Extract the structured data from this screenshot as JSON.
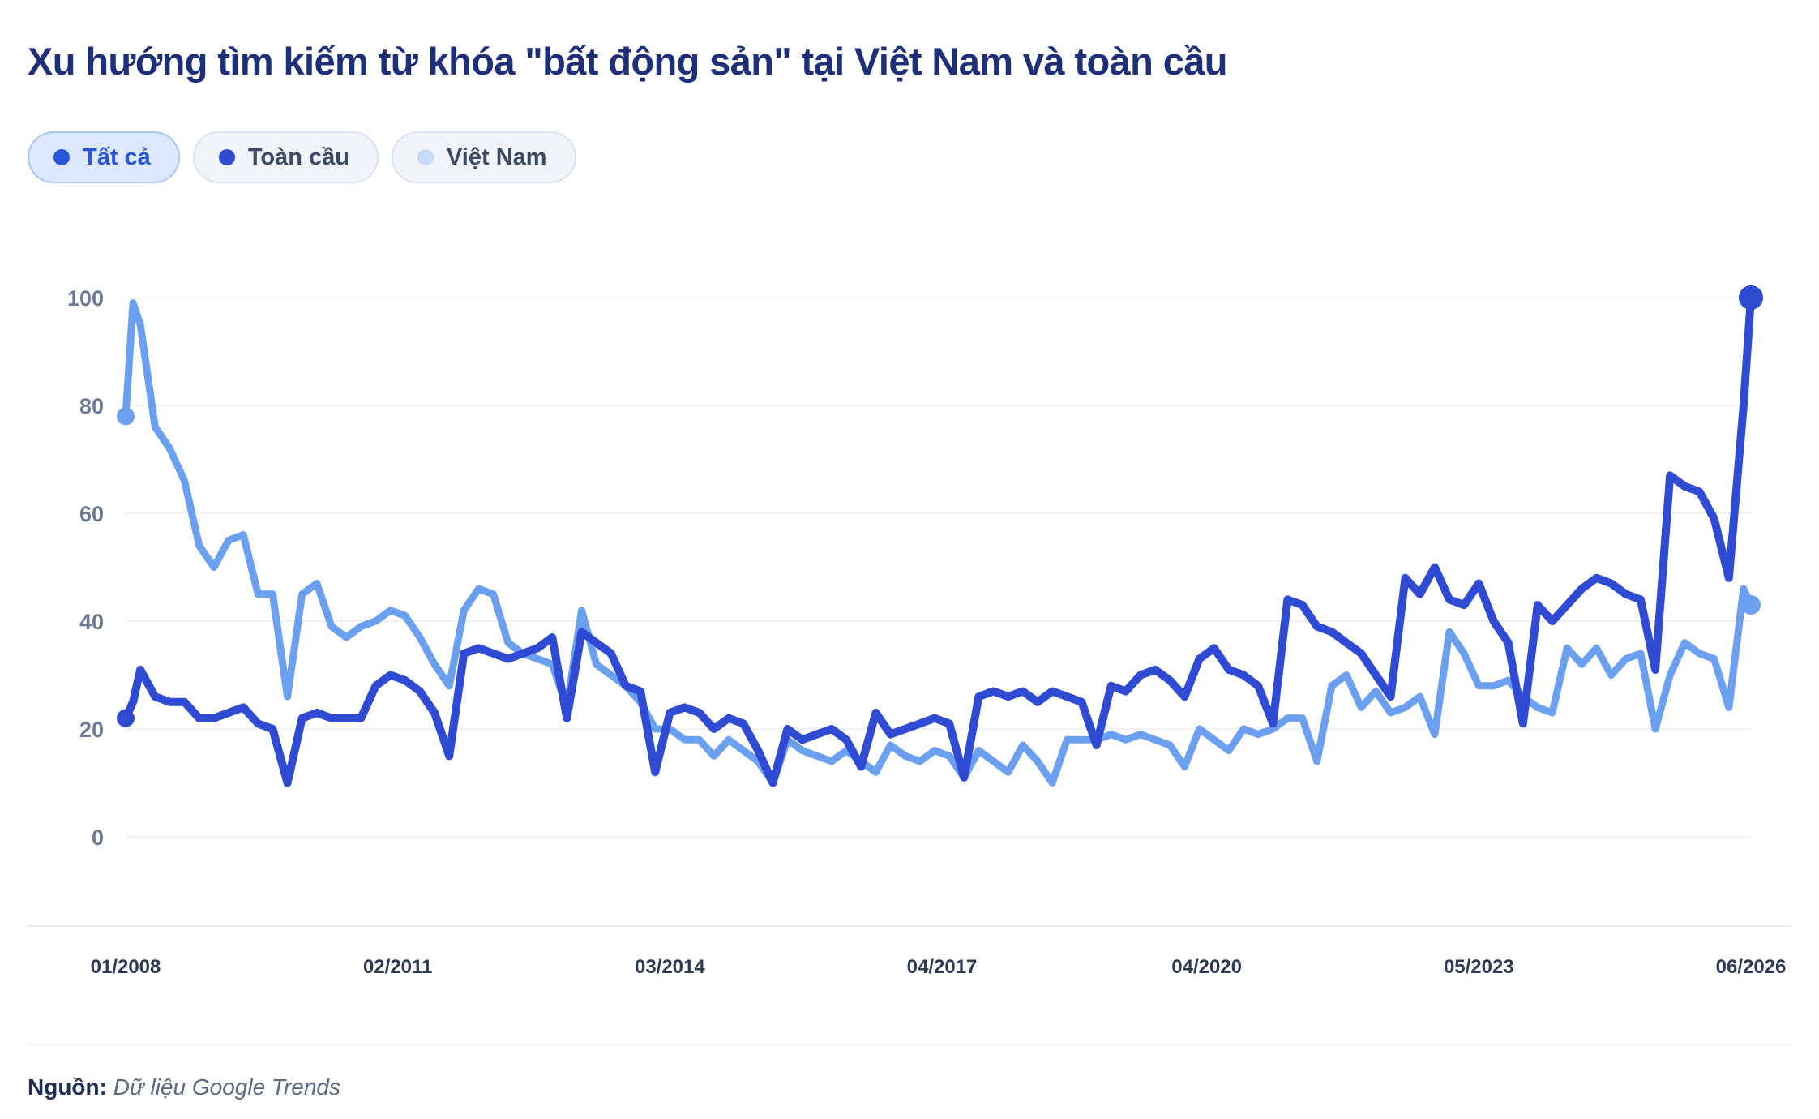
{
  "title": "Xu hướng tìm kiếm từ khóa \"bất động sản\" tại Việt Nam và toàn cầu",
  "filters": [
    {
      "label": "Tất cả",
      "color": "#2b56d9",
      "active": true
    },
    {
      "label": "Toàn cầu",
      "color": "#2f4bd3",
      "active": false
    },
    {
      "label": "Việt Nam",
      "color": "#c7dafc",
      "active": false
    }
  ],
  "source": {
    "label": "Nguồn:",
    "text": "Dữ liệu Google Trends"
  },
  "chart_data": {
    "type": "line",
    "title": "",
    "xlabel": "",
    "ylabel": "",
    "ylim": [
      0,
      100
    ],
    "yticks": [
      0,
      20,
      40,
      60,
      80,
      100
    ],
    "xlim": [
      "01/2008",
      "06/2026"
    ],
    "xtick_labels": [
      "01/2008",
      "02/2011",
      "03/2014",
      "04/2017",
      "04/2020",
      "05/2023",
      "06/2026"
    ],
    "grid": true,
    "series": [
      {
        "name": "Việt Nam",
        "color": "#6b9ff0",
        "points": [
          [
            "2008-01",
            78
          ],
          [
            "2008-02",
            99
          ],
          [
            "2008-03",
            95
          ],
          [
            "2008-05",
            76
          ],
          [
            "2008-07",
            72
          ],
          [
            "2008-09",
            66
          ],
          [
            "2008-11",
            54
          ],
          [
            "2009-01",
            50
          ],
          [
            "2009-03",
            55
          ],
          [
            "2009-05",
            56
          ],
          [
            "2009-07",
            45
          ],
          [
            "2009-09",
            45
          ],
          [
            "2009-11",
            26
          ],
          [
            "2010-01",
            45
          ],
          [
            "2010-03",
            47
          ],
          [
            "2010-05",
            39
          ],
          [
            "2010-07",
            37
          ],
          [
            "2010-09",
            39
          ],
          [
            "2010-11",
            40
          ],
          [
            "2011-01",
            42
          ],
          [
            "2011-03",
            41
          ],
          [
            "2011-05",
            37
          ],
          [
            "2011-07",
            32
          ],
          [
            "2011-09",
            28
          ],
          [
            "2011-11",
            42
          ],
          [
            "2012-01",
            46
          ],
          [
            "2012-03",
            45
          ],
          [
            "2012-05",
            36
          ],
          [
            "2012-07",
            34
          ],
          [
            "2012-09",
            33
          ],
          [
            "2012-11",
            32
          ],
          [
            "2013-01",
            24
          ],
          [
            "2013-03",
            42
          ],
          [
            "2013-05",
            32
          ],
          [
            "2013-07",
            30
          ],
          [
            "2013-09",
            28
          ],
          [
            "2013-11",
            25
          ],
          [
            "2014-01",
            20
          ],
          [
            "2014-03",
            20
          ],
          [
            "2014-05",
            18
          ],
          [
            "2014-07",
            18
          ],
          [
            "2014-09",
            15
          ],
          [
            "2014-11",
            18
          ],
          [
            "2015-01",
            16
          ],
          [
            "2015-03",
            14
          ],
          [
            "2015-05",
            10
          ],
          [
            "2015-07",
            18
          ],
          [
            "2015-09",
            16
          ],
          [
            "2015-11",
            15
          ],
          [
            "2016-01",
            14
          ],
          [
            "2016-03",
            16
          ],
          [
            "2016-05",
            14
          ],
          [
            "2016-07",
            12
          ],
          [
            "2016-09",
            17
          ],
          [
            "2016-11",
            15
          ],
          [
            "2017-01",
            14
          ],
          [
            "2017-03",
            16
          ],
          [
            "2017-05",
            15
          ],
          [
            "2017-07",
            11
          ],
          [
            "2017-09",
            16
          ],
          [
            "2017-11",
            14
          ],
          [
            "2018-01",
            12
          ],
          [
            "2018-03",
            17
          ],
          [
            "2018-05",
            14
          ],
          [
            "2018-07",
            10
          ],
          [
            "2018-09",
            18
          ],
          [
            "2018-11",
            18
          ],
          [
            "2019-01",
            18
          ],
          [
            "2019-03",
            19
          ],
          [
            "2019-05",
            18
          ],
          [
            "2019-07",
            19
          ],
          [
            "2019-09",
            18
          ],
          [
            "2019-11",
            17
          ],
          [
            "2020-01",
            13
          ],
          [
            "2020-03",
            20
          ],
          [
            "2020-05",
            18
          ],
          [
            "2020-07",
            16
          ],
          [
            "2020-09",
            20
          ],
          [
            "2020-11",
            19
          ],
          [
            "2021-01",
            20
          ],
          [
            "2021-03",
            22
          ],
          [
            "2021-05",
            22
          ],
          [
            "2021-07",
            14
          ],
          [
            "2021-09",
            28
          ],
          [
            "2021-11",
            30
          ],
          [
            "2022-01",
            24
          ],
          [
            "2022-03",
            27
          ],
          [
            "2022-05",
            23
          ],
          [
            "2022-07",
            24
          ],
          [
            "2022-09",
            26
          ],
          [
            "2022-11",
            19
          ],
          [
            "2023-01",
            38
          ],
          [
            "2023-03",
            34
          ],
          [
            "2023-05",
            28
          ],
          [
            "2023-07",
            28
          ],
          [
            "2023-09",
            29
          ],
          [
            "2023-11",
            26
          ],
          [
            "2024-01",
            24
          ],
          [
            "2024-03",
            23
          ],
          [
            "2024-05",
            35
          ],
          [
            "2024-07",
            32
          ],
          [
            "2024-09",
            35
          ],
          [
            "2024-11",
            30
          ],
          [
            "2025-01",
            33
          ],
          [
            "2025-03",
            34
          ],
          [
            "2025-05",
            20
          ],
          [
            "2025-07",
            30
          ],
          [
            "2025-09",
            36
          ],
          [
            "2025-11",
            34
          ],
          [
            "2026-01",
            33
          ],
          [
            "2026-03",
            24
          ],
          [
            "2026-05",
            46
          ],
          [
            "2026-06",
            43
          ]
        ]
      },
      {
        "name": "Toàn cầu",
        "color": "#2f4bd3",
        "points": [
          [
            "2008-01",
            22
          ],
          [
            "2008-02",
            25
          ],
          [
            "2008-03",
            31
          ],
          [
            "2008-05",
            26
          ],
          [
            "2008-07",
            25
          ],
          [
            "2008-09",
            25
          ],
          [
            "2008-11",
            22
          ],
          [
            "2009-01",
            22
          ],
          [
            "2009-03",
            23
          ],
          [
            "2009-05",
            24
          ],
          [
            "2009-07",
            21
          ],
          [
            "2009-09",
            20
          ],
          [
            "2009-11",
            10
          ],
          [
            "2010-01",
            22
          ],
          [
            "2010-03",
            23
          ],
          [
            "2010-05",
            22
          ],
          [
            "2010-07",
            22
          ],
          [
            "2010-09",
            22
          ],
          [
            "2010-11",
            28
          ],
          [
            "2011-01",
            30
          ],
          [
            "2011-03",
            29
          ],
          [
            "2011-05",
            27
          ],
          [
            "2011-07",
            23
          ],
          [
            "2011-09",
            15
          ],
          [
            "2011-11",
            34
          ],
          [
            "2012-01",
            35
          ],
          [
            "2012-03",
            34
          ],
          [
            "2012-05",
            33
          ],
          [
            "2012-07",
            34
          ],
          [
            "2012-09",
            35
          ],
          [
            "2012-11",
            37
          ],
          [
            "2013-01",
            22
          ],
          [
            "2013-03",
            38
          ],
          [
            "2013-05",
            36
          ],
          [
            "2013-07",
            34
          ],
          [
            "2013-09",
            28
          ],
          [
            "2013-11",
            27
          ],
          [
            "2014-01",
            12
          ],
          [
            "2014-03",
            23
          ],
          [
            "2014-05",
            24
          ],
          [
            "2014-07",
            23
          ],
          [
            "2014-09",
            20
          ],
          [
            "2014-11",
            22
          ],
          [
            "2015-01",
            21
          ],
          [
            "2015-03",
            16
          ],
          [
            "2015-05",
            10
          ],
          [
            "2015-07",
            20
          ],
          [
            "2015-09",
            18
          ],
          [
            "2015-11",
            19
          ],
          [
            "2016-01",
            20
          ],
          [
            "2016-03",
            18
          ],
          [
            "2016-05",
            13
          ],
          [
            "2016-07",
            23
          ],
          [
            "2016-09",
            19
          ],
          [
            "2016-11",
            20
          ],
          [
            "2017-01",
            21
          ],
          [
            "2017-03",
            22
          ],
          [
            "2017-05",
            21
          ],
          [
            "2017-07",
            11
          ],
          [
            "2017-09",
            26
          ],
          [
            "2017-11",
            27
          ],
          [
            "2018-01",
            26
          ],
          [
            "2018-03",
            27
          ],
          [
            "2018-05",
            25
          ],
          [
            "2018-07",
            27
          ],
          [
            "2018-09",
            26
          ],
          [
            "2018-11",
            25
          ],
          [
            "2019-01",
            17
          ],
          [
            "2019-03",
            28
          ],
          [
            "2019-05",
            27
          ],
          [
            "2019-07",
            30
          ],
          [
            "2019-09",
            31
          ],
          [
            "2019-11",
            29
          ],
          [
            "2020-01",
            26
          ],
          [
            "2020-03",
            33
          ],
          [
            "2020-05",
            35
          ],
          [
            "2020-07",
            31
          ],
          [
            "2020-09",
            30
          ],
          [
            "2020-11",
            28
          ],
          [
            "2021-01",
            21
          ],
          [
            "2021-03",
            44
          ],
          [
            "2021-05",
            43
          ],
          [
            "2021-07",
            39
          ],
          [
            "2021-09",
            38
          ],
          [
            "2021-11",
            36
          ],
          [
            "2022-01",
            34
          ],
          [
            "2022-03",
            30
          ],
          [
            "2022-05",
            26
          ],
          [
            "2022-07",
            48
          ],
          [
            "2022-09",
            45
          ],
          [
            "2022-11",
            50
          ],
          [
            "2023-01",
            44
          ],
          [
            "2023-03",
            43
          ],
          [
            "2023-05",
            47
          ],
          [
            "2023-07",
            40
          ],
          [
            "2023-09",
            36
          ],
          [
            "2023-11",
            21
          ],
          [
            "2024-01",
            43
          ],
          [
            "2024-03",
            40
          ],
          [
            "2024-05",
            43
          ],
          [
            "2024-07",
            46
          ],
          [
            "2024-09",
            48
          ],
          [
            "2024-11",
            47
          ],
          [
            "2025-01",
            45
          ],
          [
            "2025-03",
            44
          ],
          [
            "2025-05",
            31
          ],
          [
            "2025-07",
            67
          ],
          [
            "2025-09",
            65
          ],
          [
            "2025-11",
            64
          ],
          [
            "2026-01",
            59
          ],
          [
            "2026-03",
            48
          ],
          [
            "2026-05",
            80
          ],
          [
            "2026-06",
            100
          ]
        ]
      }
    ]
  }
}
